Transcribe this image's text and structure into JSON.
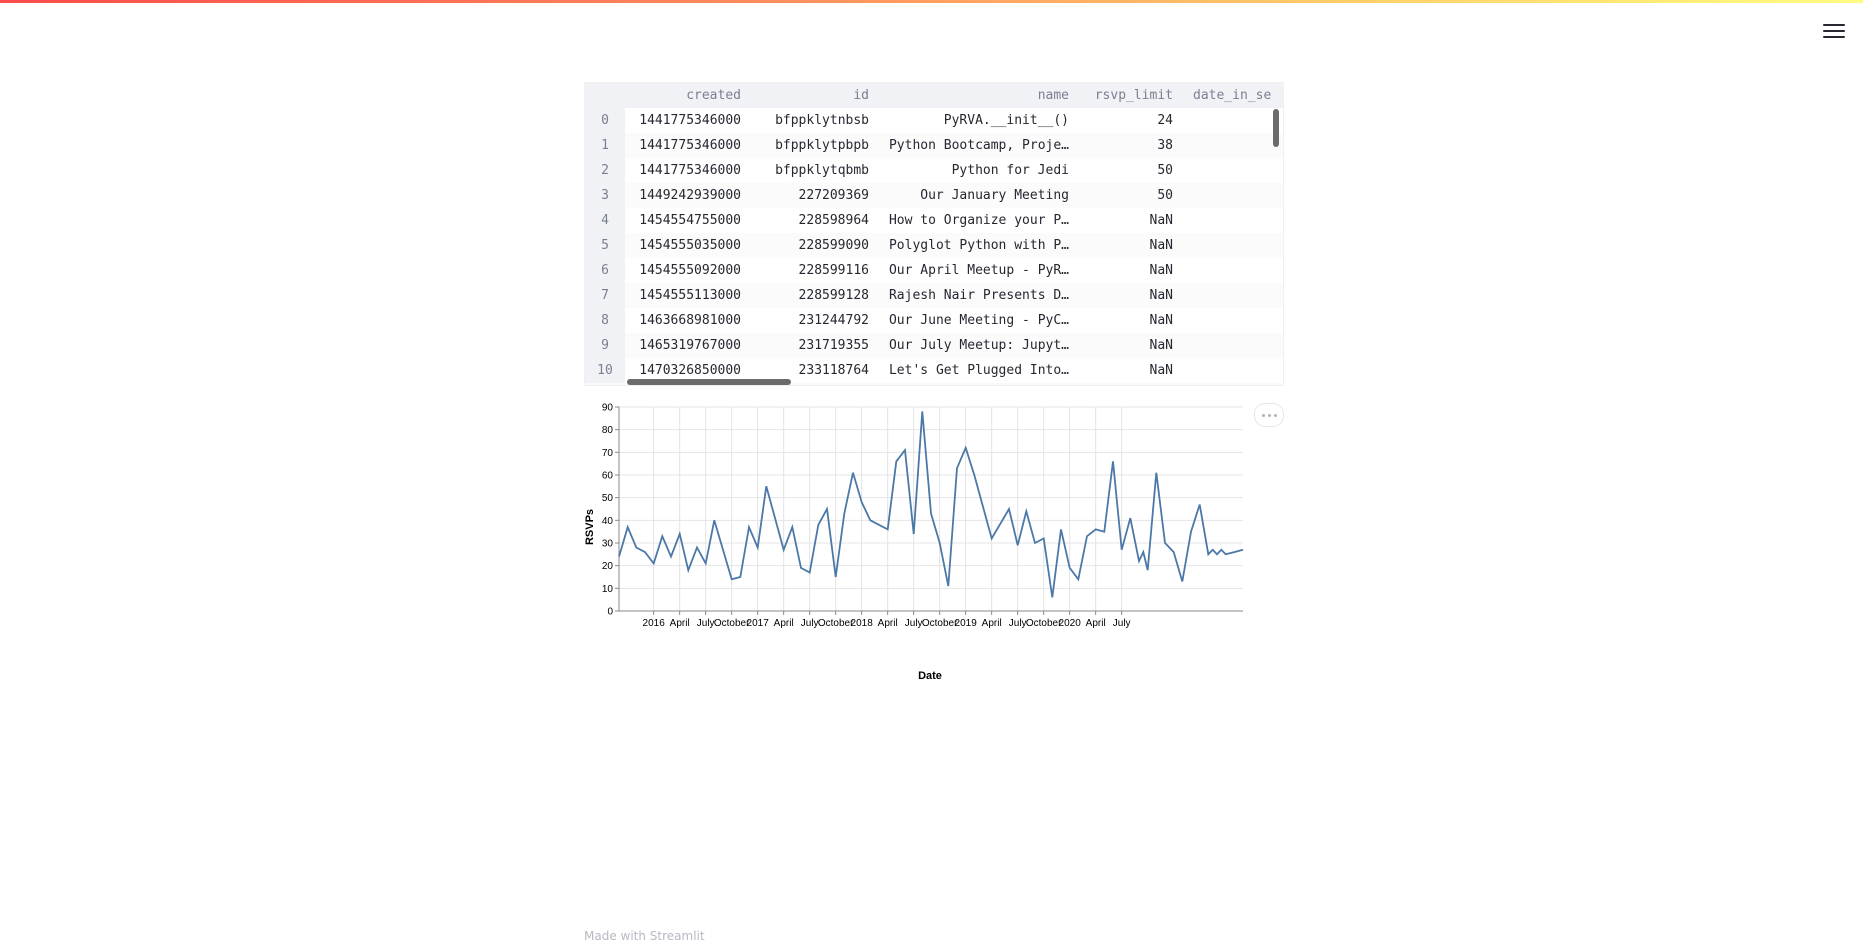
{
  "app": {
    "menu_icon": "hamburger-menu-icon",
    "footer_text": "Made with Streamlit",
    "accent_gradient": [
      "#ff4b4b",
      "#ffd36b",
      "#fffd80"
    ]
  },
  "dataframe": {
    "columns": [
      "created",
      "id",
      "name",
      "rsvp_limit",
      "date_in_se"
    ],
    "rows": [
      {
        "index": "0",
        "created": "1441775346000",
        "id": "bfppklytnbsb",
        "name": "PyRVA.__init__()",
        "rsvp_limit": "24"
      },
      {
        "index": "1",
        "created": "1441775346000",
        "id": "bfppklytpbpb",
        "name": "Python Bootcamp, Proje…",
        "rsvp_limit": "38"
      },
      {
        "index": "2",
        "created": "1441775346000",
        "id": "bfppklytqbmb",
        "name": "Python for Jedi",
        "rsvp_limit": "50"
      },
      {
        "index": "3",
        "created": "1449242939000",
        "id": "227209369",
        "name": "Our January Meeting",
        "rsvp_limit": "50"
      },
      {
        "index": "4",
        "created": "1454554755000",
        "id": "228598964",
        "name": "How to Organize your P…",
        "rsvp_limit": "NaN"
      },
      {
        "index": "5",
        "created": "1454555035000",
        "id": "228599090",
        "name": "Polyglot Python with P…",
        "rsvp_limit": "NaN"
      },
      {
        "index": "6",
        "created": "1454555092000",
        "id": "228599116",
        "name": "Our April Meetup - PyR…",
        "rsvp_limit": "NaN"
      },
      {
        "index": "7",
        "created": "1454555113000",
        "id": "228599128",
        "name": "Rajesh Nair Presents D…",
        "rsvp_limit": "NaN"
      },
      {
        "index": "8",
        "created": "1463668981000",
        "id": "231244792",
        "name": "Our June Meeting - PyC…",
        "rsvp_limit": "NaN"
      },
      {
        "index": "9",
        "created": "1465319767000",
        "id": "231719355",
        "name": "Our July Meetup: Jupyt…",
        "rsvp_limit": "NaN"
      },
      {
        "index": "10",
        "created": "1470326850000",
        "id": "233118764",
        "name": "Let's Get Plugged Into…",
        "rsvp_limit": "NaN"
      }
    ]
  },
  "chart_data": {
    "type": "line",
    "xlabel": "Date",
    "ylabel": "RSVPs",
    "ylim": [
      0,
      90
    ],
    "yticks": [
      0,
      10,
      20,
      30,
      40,
      50,
      60,
      70,
      80,
      90
    ],
    "x_range": [
      "2015-09",
      "2021-09"
    ],
    "xticks": [
      {
        "date": "2016-01",
        "label": "2016"
      },
      {
        "date": "2016-04",
        "label": "April"
      },
      {
        "date": "2016-07",
        "label": "July"
      },
      {
        "date": "2016-10",
        "label": "October"
      },
      {
        "date": "2017-01",
        "label": "2017"
      },
      {
        "date": "2017-04",
        "label": "April"
      },
      {
        "date": "2017-07",
        "label": "July"
      },
      {
        "date": "2017-10",
        "label": "October"
      },
      {
        "date": "2018-01",
        "label": "2018"
      },
      {
        "date": "2018-04",
        "label": "April"
      },
      {
        "date": "2018-07",
        "label": "July"
      },
      {
        "date": "2018-10",
        "label": "October"
      },
      {
        "date": "2019-01",
        "label": "2019"
      },
      {
        "date": "2019-04",
        "label": "April"
      },
      {
        "date": "2019-07",
        "label": "July"
      },
      {
        "date": "2019-10",
        "label": "October"
      },
      {
        "date": "2020-01",
        "label": "2020"
      },
      {
        "date": "2020-04",
        "label": "April"
      },
      {
        "date": "2020-07",
        "label": "July"
      }
    ],
    "grid": true,
    "line_color": "#4c78a8",
    "x": [
      "2015-09",
      "2015-10",
      "2015-11",
      "2015-12",
      "2016-01",
      "2016-02",
      "2016-03",
      "2016-04",
      "2016-05",
      "2016-06",
      "2016-07",
      "2016-08",
      "2016-10",
      "2016-11",
      "2016-12",
      "2017-01",
      "2017-02",
      "2017-04",
      "2017-05",
      "2017-06",
      "2017-07",
      "2017-08",
      "2017-09",
      "2017-10",
      "2017-11",
      "2017-12",
      "2018-01",
      "2018-02",
      "2018-04",
      "2018-05",
      "2018-06",
      "2018-07",
      "2018-08",
      "2018-09",
      "2018-10",
      "2018-11",
      "2018-12",
      "2019-01",
      "2019-02",
      "2019-04",
      "2019-06",
      "2019-07",
      "2019-08",
      "2019-09",
      "2019-10",
      "2019-11",
      "2019-12",
      "2020-01",
      "2020-02",
      "2020-03",
      "2020-04",
      "2020-05",
      "2020-06",
      "2020-07",
      "2020-08",
      "2020-09",
      "2020-09",
      "2020-10",
      "2020-11",
      "2020-12",
      "2021-01",
      "2021-02",
      "2021-03",
      "2021-04",
      "2021-05",
      "2021-05",
      "2021-06",
      "2021-06",
      "2021-07",
      "2021-08",
      "2021-09"
    ],
    "values": [
      24,
      37,
      28,
      26,
      21,
      33,
      24,
      34,
      18,
      28,
      21,
      40,
      14,
      15,
      37,
      28,
      55,
      27,
      37,
      19,
      17,
      38,
      45,
      15,
      43,
      61,
      48,
      40,
      36,
      66,
      71,
      34,
      88,
      43,
      30,
      11,
      63,
      72,
      60,
      32,
      45,
      29,
      44,
      30,
      32,
      6,
      36,
      19,
      14,
      33,
      36,
      35,
      66,
      27,
      41,
      22,
      26,
      18,
      61,
      30,
      26,
      13,
      35,
      47,
      25,
      27,
      25,
      27,
      25,
      26,
      27
    ]
  }
}
